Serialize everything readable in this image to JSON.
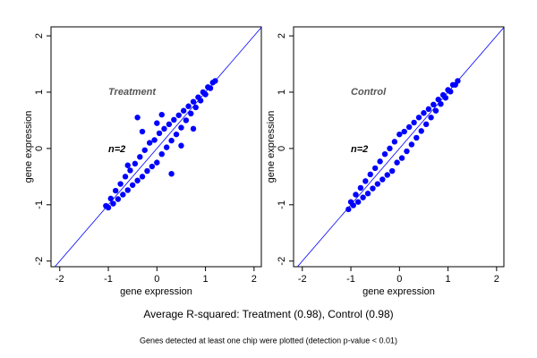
{
  "figure": {
    "caption": "Average R-squared: Treatment (0.98), Control (0.98)",
    "footnote": "Genes detected at least one chip were plotted (detection p-value < 0.01)"
  },
  "chart_data": [
    {
      "type": "scatter",
      "label": "Treatment",
      "note": "n=2",
      "xlabel": "gene expression",
      "ylabel": "gene expression",
      "color": "#0000ff",
      "line_color": "#0000ff",
      "xlim": [
        -2.18,
        2.15
      ],
      "ylim": [
        -2.1,
        2.16
      ],
      "xticks": [
        -2,
        -1,
        0,
        1,
        2
      ],
      "yticks": [
        -2,
        -1,
        0,
        1,
        2
      ],
      "x": [
        -1.05,
        -1,
        -0.95,
        -0.9,
        -0.85,
        -0.8,
        -0.75,
        -0.7,
        -0.65,
        -0.6,
        -0.55,
        -0.5,
        -0.45,
        -0.4,
        -0.35,
        -0.3,
        -0.25,
        -0.2,
        -0.15,
        -0.1,
        -0.05,
        0,
        0.05,
        0.1,
        0.15,
        0.2,
        0.25,
        0.3,
        0.35,
        0.4,
        0.45,
        0.5,
        0.55,
        0.6,
        0.65,
        0.7,
        0.75,
        0.8,
        0.85,
        0.9,
        0.95,
        1,
        1.05,
        1.1,
        1.15,
        1.2,
        -0.4,
        -0.3,
        0.3,
        0.5,
        0.75,
        0.1,
        -0.6,
        0
      ],
      "values": [
        -1.02,
        -1.05,
        -0.89,
        -0.98,
        -0.75,
        -0.9,
        -0.63,
        -0.82,
        -0.5,
        -0.74,
        -0.39,
        -0.65,
        -0.27,
        -0.57,
        -0.15,
        -0.5,
        -0.03,
        -0.4,
        0.1,
        -0.32,
        0.15,
        -0.25,
        0.27,
        -0.1,
        0.35,
        0.02,
        0.43,
        0.14,
        0.51,
        0.25,
        0.59,
        0.37,
        0.67,
        0.5,
        0.75,
        0.62,
        0.83,
        0.73,
        0.91,
        0.85,
        1,
        0.96,
        1.09,
        1.07,
        1.17,
        1.2,
        0.55,
        0.3,
        -0.45,
        0.05,
        0.35,
        0.6,
        -0.3,
        0.45
      ]
    },
    {
      "type": "scatter",
      "label": "Control",
      "note": "n=2",
      "xlabel": "gene expression",
      "ylabel": "gene expression",
      "color": "#0000ff",
      "line_color": "#0000ff",
      "xlim": [
        -2.18,
        2.15
      ],
      "ylim": [
        -2.1,
        2.16
      ],
      "xticks": [
        -2,
        -1,
        0,
        1,
        2
      ],
      "yticks": [
        -2,
        -1,
        0,
        1,
        2
      ],
      "x": [
        -1.05,
        -1,
        -0.95,
        -0.9,
        -0.85,
        -0.8,
        -0.75,
        -0.7,
        -0.65,
        -0.6,
        -0.55,
        -0.5,
        -0.45,
        -0.4,
        -0.35,
        -0.3,
        -0.25,
        -0.2,
        -0.15,
        -0.1,
        -0.05,
        0,
        0.05,
        0.1,
        0.15,
        0.2,
        0.25,
        0.3,
        0.35,
        0.4,
        0.45,
        0.5,
        0.55,
        0.6,
        0.65,
        0.7,
        0.75,
        0.8,
        0.85,
        0.9,
        0.95,
        1,
        1.05,
        1.1,
        1.15,
        1.2
      ],
      "values": [
        -1.08,
        -0.95,
        -1.01,
        -0.82,
        -0.95,
        -0.7,
        -0.87,
        -0.58,
        -0.8,
        -0.46,
        -0.71,
        -0.35,
        -0.63,
        -0.23,
        -0.55,
        -0.1,
        -0.47,
        0,
        -0.4,
        0.12,
        -0.25,
        0.25,
        -0.17,
        0.3,
        -0.05,
        0.38,
        0.07,
        0.46,
        0.19,
        0.55,
        0.31,
        0.63,
        0.43,
        0.7,
        0.55,
        0.78,
        0.67,
        0.87,
        0.79,
        0.95,
        0.9,
        1.04,
        1.01,
        1.13,
        1.13,
        1.2
      ]
    }
  ]
}
